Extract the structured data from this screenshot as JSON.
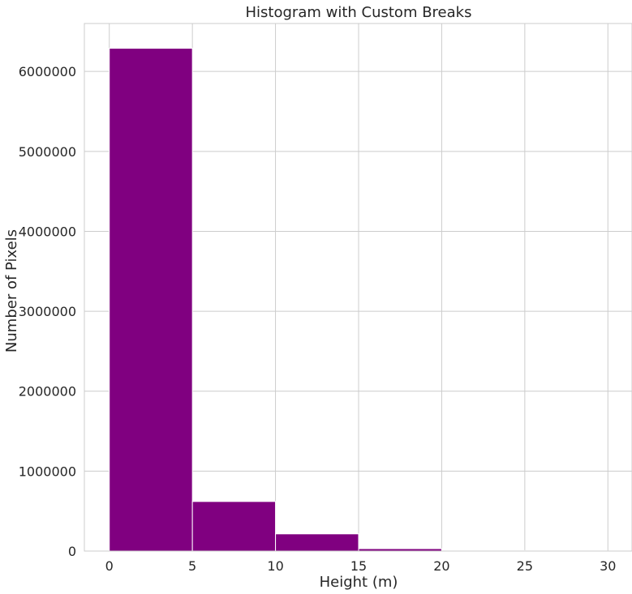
{
  "chart_data": {
    "type": "bar",
    "title": "Histogram with Custom Breaks",
    "xlabel": "Height (m)",
    "ylabel": "Number of Pixels",
    "bins": [
      {
        "from": 0,
        "to": 5,
        "value": 6290000
      },
      {
        "from": 5,
        "to": 10,
        "value": 620000
      },
      {
        "from": 10,
        "to": 15,
        "value": 215000
      },
      {
        "from": 15,
        "to": 20,
        "value": 30000
      },
      {
        "from": 20,
        "to": 25,
        "value": 6000
      },
      {
        "from": 25,
        "to": 30,
        "value": 1500
      }
    ],
    "xlim": [
      -1.5,
      31.5
    ],
    "ylim": [
      0,
      6600000
    ],
    "xticks": [
      0,
      5,
      10,
      15,
      20,
      25,
      30
    ],
    "xtick_labels": [
      "0",
      "5",
      "10",
      "15",
      "20",
      "25",
      "30"
    ],
    "yticks": [
      0,
      1000000,
      2000000,
      3000000,
      4000000,
      5000000,
      6000000
    ],
    "ytick_labels": [
      "0",
      "1000000",
      "2000000",
      "3000000",
      "4000000",
      "5000000",
      "6000000"
    ],
    "grid": true,
    "bar_color": "#800080"
  }
}
